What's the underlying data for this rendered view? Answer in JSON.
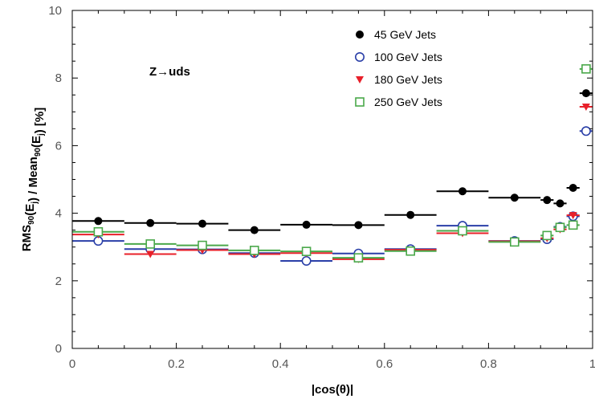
{
  "chart_data": {
    "type": "scatter",
    "title": "",
    "annotation": "Z→uds",
    "xlabel": "|cos(θ)|",
    "ylabel": {
      "parts": [
        {
          "t": "RMS",
          "sub": false
        },
        {
          "t": "90",
          "sub": true
        },
        {
          "t": "(E",
          "sub": false
        },
        {
          "t": "j",
          "sub": true
        },
        {
          "t": ") / Mean",
          "sub": false
        },
        {
          "t": "90",
          "sub": true
        },
        {
          "t": "(E",
          "sub": false
        },
        {
          "t": "j",
          "sub": true
        },
        {
          "t": ") [%]",
          "sub": false
        }
      ]
    },
    "xlim": [
      0,
      1
    ],
    "ylim": [
      0,
      10
    ],
    "xticks": [
      "0",
      "0.2",
      "0.4",
      "0.6",
      "0.8",
      "1"
    ],
    "yticks": [
      "0",
      "2",
      "4",
      "6",
      "8",
      "10"
    ],
    "grid": false,
    "legend_position": "top-right",
    "series": [
      {
        "name": "45 GeV Jets",
        "marker": "filled-circle",
        "color": "#000000",
        "x": [
          0.05,
          0.15,
          0.25,
          0.35,
          0.45,
          0.55,
          0.65,
          0.75,
          0.85,
          0.9125,
          0.9375,
          0.9625,
          0.9875
        ],
        "y": [
          3.77,
          3.71,
          3.69,
          3.5,
          3.66,
          3.65,
          3.95,
          4.65,
          4.46,
          4.39,
          4.29,
          4.75,
          7.55
        ],
        "xlo": [
          0.0,
          0.1,
          0.2,
          0.3,
          0.4,
          0.5,
          0.6,
          0.7,
          0.8,
          0.9,
          0.925,
          0.95,
          0.975
        ],
        "xhi": [
          0.1,
          0.2,
          0.3,
          0.4,
          0.5,
          0.6,
          0.7,
          0.8,
          0.9,
          0.925,
          0.95,
          0.975,
          1.0
        ]
      },
      {
        "name": "100 GeV Jets",
        "marker": "open-circle",
        "color": "#2a3fa8",
        "x": [
          0.05,
          0.15,
          0.25,
          0.35,
          0.45,
          0.55,
          0.65,
          0.75,
          0.85,
          0.9125,
          0.9375,
          0.9625,
          0.9875
        ],
        "y": [
          3.18,
          2.94,
          2.93,
          2.82,
          2.59,
          2.81,
          2.94,
          3.63,
          3.18,
          3.23,
          3.6,
          3.91,
          6.43
        ],
        "xlo": [
          0.0,
          0.1,
          0.2,
          0.3,
          0.4,
          0.5,
          0.6,
          0.7,
          0.8,
          0.9,
          0.925,
          0.95,
          0.975
        ],
        "xhi": [
          0.1,
          0.2,
          0.3,
          0.4,
          0.5,
          0.6,
          0.7,
          0.8,
          0.9,
          0.925,
          0.95,
          0.975,
          1.0
        ]
      },
      {
        "name": "180 GeV Jets",
        "marker": "filled-triangle-down",
        "color": "#e8202a",
        "x": [
          0.05,
          0.15,
          0.25,
          0.35,
          0.45,
          0.55,
          0.65,
          0.75,
          0.85,
          0.9125,
          0.9375,
          0.9625,
          0.9875
        ],
        "y": [
          3.37,
          2.79,
          2.91,
          2.79,
          2.82,
          2.64,
          2.92,
          3.41,
          3.17,
          3.26,
          3.52,
          3.94,
          7.15
        ],
        "xlo": [
          0.0,
          0.1,
          0.2,
          0.3,
          0.4,
          0.5,
          0.6,
          0.7,
          0.8,
          0.9,
          0.925,
          0.95,
          0.975
        ],
        "xhi": [
          0.1,
          0.2,
          0.3,
          0.4,
          0.5,
          0.6,
          0.7,
          0.8,
          0.9,
          0.925,
          0.95,
          0.975,
          1.0
        ]
      },
      {
        "name": "250 GeV Jets",
        "marker": "open-square",
        "color": "#4aa84a",
        "x": [
          0.05,
          0.15,
          0.25,
          0.35,
          0.45,
          0.55,
          0.65,
          0.75,
          0.85,
          0.9125,
          0.9375,
          0.9625,
          0.9875
        ],
        "y": [
          3.45,
          3.09,
          3.05,
          2.9,
          2.87,
          2.68,
          2.88,
          3.48,
          3.15,
          3.34,
          3.58,
          3.65,
          8.27
        ],
        "xlo": [
          0.0,
          0.1,
          0.2,
          0.3,
          0.4,
          0.5,
          0.6,
          0.7,
          0.8,
          0.9,
          0.925,
          0.95,
          0.975
        ],
        "xhi": [
          0.1,
          0.2,
          0.3,
          0.4,
          0.5,
          0.6,
          0.7,
          0.8,
          0.9,
          0.925,
          0.95,
          0.975,
          1.0
        ]
      }
    ]
  }
}
